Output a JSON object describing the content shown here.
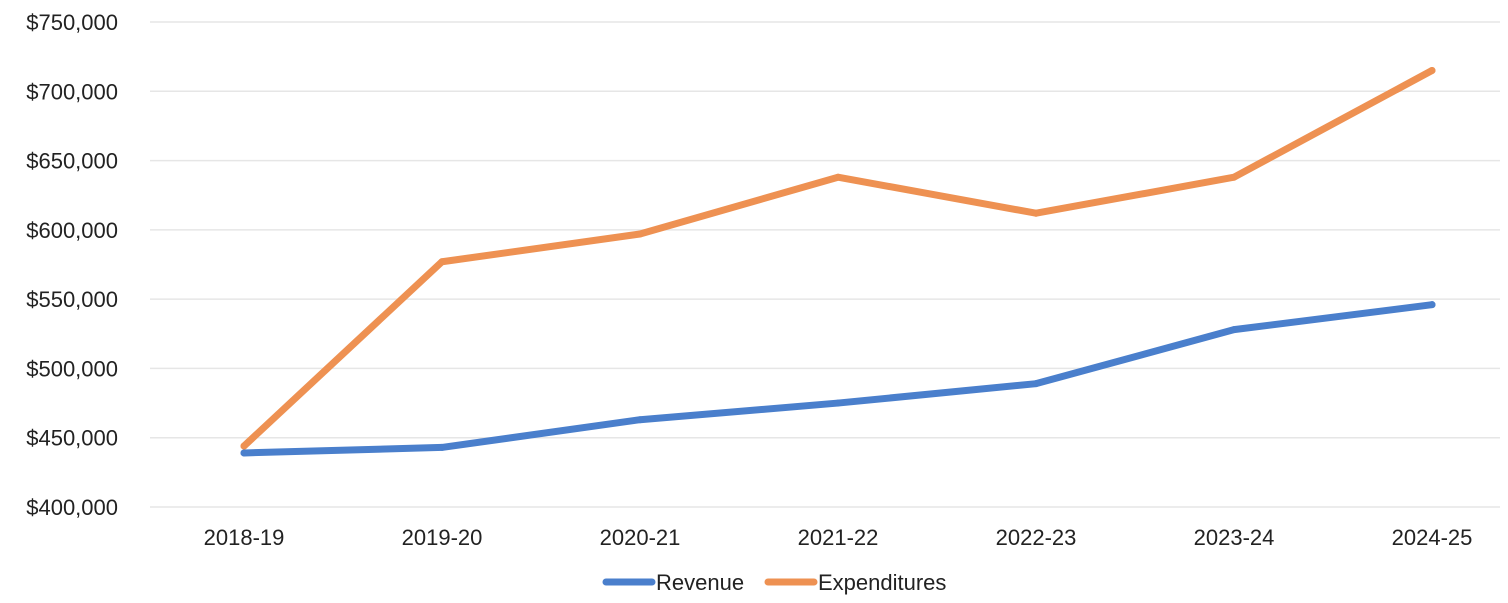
{
  "chart_data": {
    "type": "line",
    "categories": [
      "2018-19",
      "2019-20",
      "2020-21",
      "2021-22",
      "2022-23",
      "2023-24",
      "2024-25"
    ],
    "series": [
      {
        "name": "Revenue",
        "color": "#4a7fcc",
        "values": [
          439000,
          443000,
          463000,
          475000,
          489000,
          528000,
          546000
        ]
      },
      {
        "name": "Expenditures",
        "color": "#ee9152",
        "values": [
          444000,
          577000,
          597000,
          638000,
          612000,
          638000,
          715000
        ]
      }
    ],
    "ylim": [
      400000,
      750000
    ],
    "ytick_labels": [
      "$400,000",
      "$450,000",
      "$500,000",
      "$550,000",
      "$600,000",
      "$650,000",
      "$700,000",
      "$750,000"
    ],
    "grid": true,
    "legend_position": "bottom-center"
  }
}
